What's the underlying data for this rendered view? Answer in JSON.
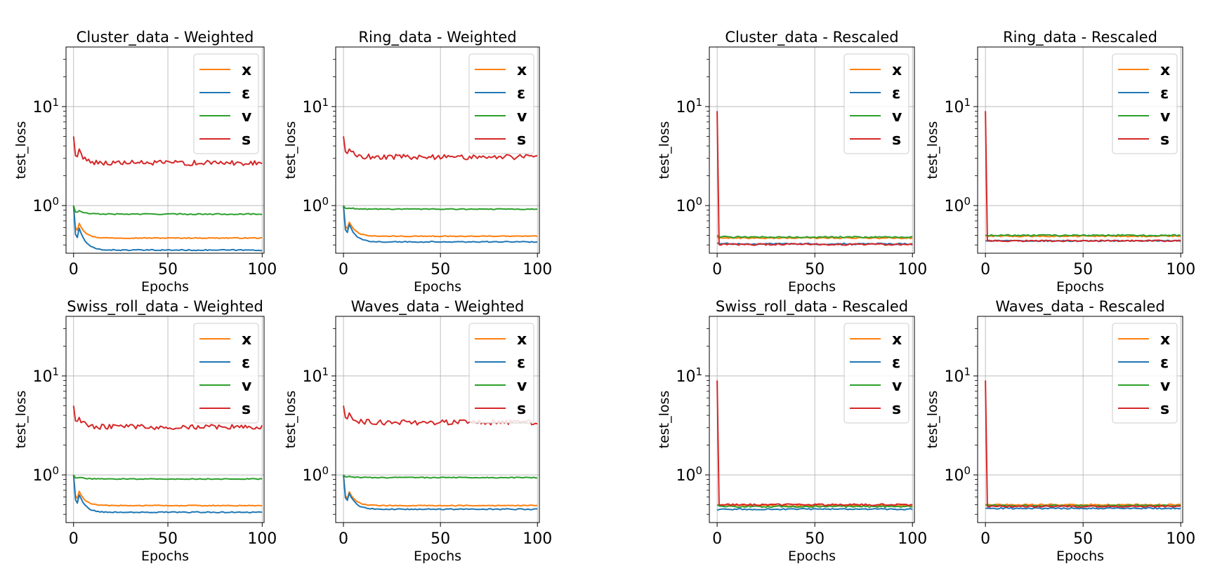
{
  "chart_data": [
    {
      "type": "line",
      "title": "Cluster_data - Weighted",
      "xlabel": "Epochs",
      "ylabel": "test_loss",
      "xlim": [
        -4,
        101
      ],
      "ylim": [
        0.33,
        40
      ],
      "yscale": "log",
      "xticks": [
        "0",
        "50",
        "100"
      ],
      "yticks": [
        {
          "value": 1,
          "base": "10",
          "exp": "0"
        },
        {
          "value": 10,
          "base": "10",
          "exp": "1"
        }
      ],
      "grid": true,
      "legend_position": "top-right",
      "series": [
        {
          "name": "x",
          "color": "#ff7f0e",
          "start": 1.0,
          "end": 0.47,
          "noise": 0.005
        },
        {
          "name": "ε",
          "color": "#1f77b4",
          "start": 1.0,
          "end": 0.355,
          "noise": 0.006
        },
        {
          "name": "v",
          "color": "#2ca02c",
          "start": 1.0,
          "end": 0.82,
          "noise": 0.006
        },
        {
          "name": "s",
          "color": "#d62728",
          "start": 5.0,
          "end": 2.7,
          "noise": 0.03
        }
      ]
    },
    {
      "type": "line",
      "title": "Ring_data - Weighted",
      "xlabel": "Epochs",
      "ylabel": "test_loss",
      "xlim": [
        -4,
        101
      ],
      "ylim": [
        0.33,
        40
      ],
      "yscale": "log",
      "xticks": [
        "0",
        "50",
        "100"
      ],
      "yticks": [
        {
          "value": 1,
          "base": "10",
          "exp": "0"
        },
        {
          "value": 10,
          "base": "10",
          "exp": "1"
        }
      ],
      "grid": true,
      "legend_position": "top-right",
      "series": [
        {
          "name": "x",
          "color": "#ff7f0e",
          "start": 1.0,
          "end": 0.49,
          "noise": 0.005
        },
        {
          "name": "ε",
          "color": "#1f77b4",
          "start": 1.0,
          "end": 0.43,
          "noise": 0.006
        },
        {
          "name": "v",
          "color": "#2ca02c",
          "start": 1.0,
          "end": 0.92,
          "noise": 0.005
        },
        {
          "name": "s",
          "color": "#d62728",
          "start": 5.0,
          "end": 3.1,
          "noise": 0.03
        }
      ]
    },
    {
      "type": "line",
      "title": "Cluster_data - Rescaled",
      "xlabel": "Epochs",
      "ylabel": "test_loss",
      "xlim": [
        -4,
        101
      ],
      "ylim": [
        0.33,
        40
      ],
      "yscale": "log",
      "xticks": [
        "0",
        "50",
        "100"
      ],
      "yticks": [
        {
          "value": 1,
          "base": "10",
          "exp": "0"
        },
        {
          "value": 10,
          "base": "10",
          "exp": "1"
        }
      ],
      "grid": true,
      "legend_position": "top-right",
      "series": [
        {
          "name": "x",
          "color": "#ff7f0e",
          "start": 0.48,
          "end": 0.47,
          "noise": 0.008
        },
        {
          "name": "ε",
          "color": "#1f77b4",
          "start": 0.42,
          "end": 0.41,
          "noise": 0.008
        },
        {
          "name": "v",
          "color": "#2ca02c",
          "start": 0.5,
          "end": 0.48,
          "noise": 0.008
        },
        {
          "name": "s",
          "color": "#d62728",
          "start": 9.0,
          "end": 0.405,
          "noise": 0.01,
          "spike": true
        }
      ]
    },
    {
      "type": "line",
      "title": "Ring_data - Rescaled",
      "xlabel": "Epochs",
      "ylabel": "test_loss",
      "xlim": [
        -4,
        101
      ],
      "ylim": [
        0.33,
        40
      ],
      "yscale": "log",
      "xticks": [
        "0",
        "50",
        "100"
      ],
      "yticks": [
        {
          "value": 1,
          "base": "10",
          "exp": "0"
        },
        {
          "value": 10,
          "base": "10",
          "exp": "1"
        }
      ],
      "grid": true,
      "legend_position": "top-right",
      "series": [
        {
          "name": "x",
          "color": "#ff7f0e",
          "start": 0.5,
          "end": 0.49,
          "noise": 0.008
        },
        {
          "name": "ε",
          "color": "#1f77b4",
          "start": 0.44,
          "end": 0.44,
          "noise": 0.006
        },
        {
          "name": "v",
          "color": "#2ca02c",
          "start": 0.5,
          "end": 0.5,
          "noise": 0.008
        },
        {
          "name": "s",
          "color": "#d62728",
          "start": 9.0,
          "end": 0.44,
          "noise": 0.008,
          "spike": true
        }
      ]
    },
    {
      "type": "line",
      "title": "Swiss_roll_data - Weighted",
      "xlabel": "Epochs",
      "ylabel": "test_loss",
      "xlim": [
        -4,
        101
      ],
      "ylim": [
        0.33,
        40
      ],
      "yscale": "log",
      "xticks": [
        "0",
        "50",
        "100"
      ],
      "yticks": [
        {
          "value": 1,
          "base": "10",
          "exp": "0"
        },
        {
          "value": 10,
          "base": "10",
          "exp": "1"
        }
      ],
      "grid": true,
      "legend_position": "top-right",
      "series": [
        {
          "name": "x",
          "color": "#ff7f0e",
          "start": 1.0,
          "end": 0.49,
          "noise": 0.005
        },
        {
          "name": "ε",
          "color": "#1f77b4",
          "start": 1.0,
          "end": 0.42,
          "noise": 0.006
        },
        {
          "name": "v",
          "color": "#2ca02c",
          "start": 1.0,
          "end": 0.91,
          "noise": 0.005
        },
        {
          "name": "s",
          "color": "#d62728",
          "start": 5.0,
          "end": 3.05,
          "noise": 0.03
        }
      ]
    },
    {
      "type": "line",
      "title": "Waves_data - Weighted",
      "xlabel": "Epochs",
      "ylabel": "test_loss",
      "xlim": [
        -4,
        101
      ],
      "ylim": [
        0.33,
        40
      ],
      "yscale": "log",
      "xticks": [
        "0",
        "50",
        "100"
      ],
      "yticks": [
        {
          "value": 1,
          "base": "10",
          "exp": "0"
        },
        {
          "value": 10,
          "base": "10",
          "exp": "1"
        }
      ],
      "grid": true,
      "legend_position": "top-right",
      "series": [
        {
          "name": "x",
          "color": "#ff7f0e",
          "start": 1.0,
          "end": 0.49,
          "noise": 0.005
        },
        {
          "name": "ε",
          "color": "#1f77b4",
          "start": 1.0,
          "end": 0.45,
          "noise": 0.006
        },
        {
          "name": "v",
          "color": "#2ca02c",
          "start": 1.0,
          "end": 0.94,
          "noise": 0.005
        },
        {
          "name": "s",
          "color": "#d62728",
          "start": 5.0,
          "end": 3.4,
          "noise": 0.03
        }
      ]
    },
    {
      "type": "line",
      "title": "Swiss_roll_data - Rescaled",
      "xlabel": "Epochs",
      "ylabel": "test_loss",
      "xlim": [
        -4,
        101
      ],
      "ylim": [
        0.33,
        40
      ],
      "yscale": "log",
      "xticks": [
        "0",
        "50",
        "100"
      ],
      "yticks": [
        {
          "value": 1,
          "base": "10",
          "exp": "0"
        },
        {
          "value": 10,
          "base": "10",
          "exp": "1"
        }
      ],
      "grid": true,
      "legend_position": "top-right",
      "series": [
        {
          "name": "x",
          "color": "#ff7f0e",
          "start": 0.5,
          "end": 0.49,
          "noise": 0.01
        },
        {
          "name": "ε",
          "color": "#1f77b4",
          "start": 0.44,
          "end": 0.45,
          "noise": 0.008
        },
        {
          "name": "v",
          "color": "#2ca02c",
          "start": 0.5,
          "end": 0.48,
          "noise": 0.01
        },
        {
          "name": "s",
          "color": "#d62728",
          "start": 9.0,
          "end": 0.5,
          "noise": 0.01,
          "spike": true
        }
      ]
    },
    {
      "type": "line",
      "title": "Waves_data - Rescaled",
      "xlabel": "Epochs",
      "ylabel": "test_loss",
      "xlim": [
        -4,
        101
      ],
      "ylim": [
        0.33,
        40
      ],
      "yscale": "log",
      "xticks": [
        "0",
        "50",
        "100"
      ],
      "yticks": [
        {
          "value": 1,
          "base": "10",
          "exp": "0"
        },
        {
          "value": 10,
          "base": "10",
          "exp": "1"
        }
      ],
      "grid": true,
      "legend_position": "top-right",
      "series": [
        {
          "name": "x",
          "color": "#ff7f0e",
          "start": 0.5,
          "end": 0.5,
          "noise": 0.008
        },
        {
          "name": "ε",
          "color": "#1f77b4",
          "start": 0.46,
          "end": 0.46,
          "noise": 0.008
        },
        {
          "name": "v",
          "color": "#2ca02c",
          "start": 0.5,
          "end": 0.49,
          "noise": 0.008
        },
        {
          "name": "s",
          "color": "#d62728",
          "start": 9.0,
          "end": 0.48,
          "noise": 0.008,
          "spike": true
        }
      ]
    }
  ]
}
